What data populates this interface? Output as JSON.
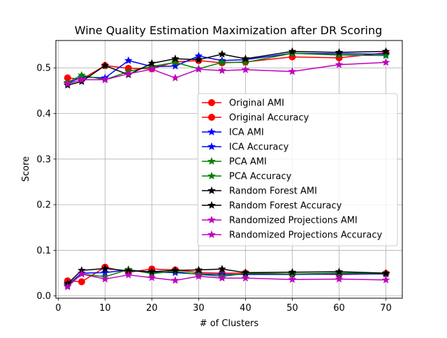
{
  "chart_data": {
    "type": "line",
    "title": "Wine Quality  Estimation Maximization after DR Scoring",
    "xlabel": "# of Clusters",
    "ylabel": "Score",
    "xlim": [
      -0.5,
      73.5
    ],
    "ylim": [
      -0.005,
      0.56
    ],
    "xticks": [
      0,
      10,
      20,
      30,
      40,
      50,
      60,
      70
    ],
    "yticks": [
      0.0,
      0.1,
      0.2,
      0.3,
      0.4,
      0.5
    ],
    "grid": true,
    "legend_position": "center-right",
    "x": [
      2,
      5,
      10,
      15,
      20,
      25,
      30,
      35,
      40,
      50,
      60,
      70
    ],
    "series": [
      {
        "name": "Original AMI",
        "color": "#ff0000",
        "marker": "circle",
        "values": [
          0.033,
          0.031,
          0.063,
          0.052,
          0.059,
          0.057,
          0.051,
          0.05,
          0.05,
          0.048,
          0.047,
          0.049
        ]
      },
      {
        "name": "Original Accuracy",
        "color": "#ff0000",
        "marker": "circle",
        "values": [
          0.478,
          0.475,
          0.505,
          0.499,
          0.498,
          0.513,
          0.516,
          0.511,
          0.513,
          0.524,
          0.522,
          0.533
        ]
      },
      {
        "name": "ICA AMI",
        "color": "#0000ff",
        "marker": "star",
        "values": [
          0.024,
          0.05,
          0.051,
          0.057,
          0.052,
          0.051,
          0.048,
          0.047,
          0.047,
          0.047,
          0.048,
          0.048
        ]
      },
      {
        "name": "ICA Accuracy",
        "color": "#0000ff",
        "marker": "star",
        "values": [
          0.466,
          0.48,
          0.478,
          0.516,
          0.503,
          0.504,
          0.526,
          0.516,
          0.518,
          0.532,
          0.531,
          0.53
        ]
      },
      {
        "name": "PCA AMI",
        "color": "#008000",
        "marker": "star",
        "values": [
          0.022,
          0.048,
          0.042,
          0.058,
          0.049,
          0.054,
          0.047,
          0.043,
          0.049,
          0.048,
          0.05,
          0.049
        ]
      },
      {
        "name": "PCA Accuracy",
        "color": "#008000",
        "marker": "star",
        "values": [
          0.468,
          0.484,
          0.474,
          0.492,
          0.503,
          0.512,
          0.498,
          0.512,
          0.512,
          0.532,
          0.528,
          0.527
        ]
      },
      {
        "name": "Random Forest AMI",
        "color": "#000000",
        "marker": "star",
        "values": [
          0.027,
          0.056,
          0.06,
          0.055,
          0.053,
          0.056,
          0.057,
          0.059,
          0.051,
          0.052,
          0.053,
          0.05
        ]
      },
      {
        "name": "Random Forest Accuracy",
        "color": "#000000",
        "marker": "star",
        "values": [
          0.462,
          0.47,
          0.505,
          0.485,
          0.51,
          0.52,
          0.518,
          0.53,
          0.52,
          0.536,
          0.534,
          0.536
        ]
      },
      {
        "name": "Randomized Projections AMI",
        "color": "#bf00bf",
        "marker": "star",
        "values": [
          0.02,
          0.048,
          0.037,
          0.046,
          0.04,
          0.034,
          0.043,
          0.039,
          0.039,
          0.036,
          0.037,
          0.035
        ]
      },
      {
        "name": "Randomized Projections Accuracy",
        "color": "#bf00bf",
        "marker": "star",
        "values": [
          0.465,
          0.474,
          0.474,
          0.487,
          0.497,
          0.478,
          0.497,
          0.494,
          0.496,
          0.492,
          0.507,
          0.512
        ]
      }
    ]
  }
}
